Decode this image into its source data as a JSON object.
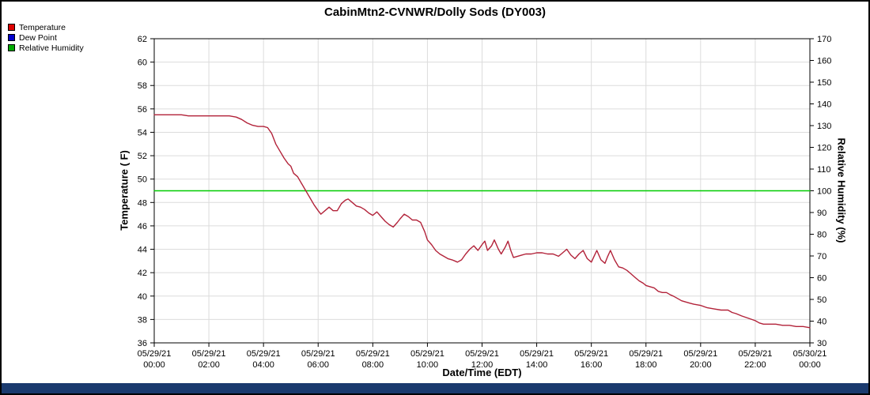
{
  "footer": {
    "color": "#1a3a6e"
  },
  "legend": {
    "items": [
      {
        "label": "Temperature",
        "color": "#dd0000"
      },
      {
        "label": "Dew Point",
        "color": "#0000cc"
      },
      {
        "label": "Relative Humidity",
        "color": "#00aa00"
      }
    ]
  },
  "chart_data": {
    "type": "line",
    "title": "CabinMtn2-CVNWR/Dolly Sods (DY003)",
    "xlabel": "Date/Time (EDT)",
    "ylabel_left": "Temperature ( F)",
    "ylabel_right": "Relative Humidity (%)",
    "grid": true,
    "legend_position": "top-left",
    "axes": {
      "left": {
        "min": 36,
        "max": 62,
        "step": 2
      },
      "right": {
        "min": 30,
        "max": 170,
        "step": 10
      },
      "x_hours": [
        0,
        24
      ]
    },
    "x_ticks": [
      {
        "h": 0,
        "date": "05/29/21",
        "time": "00:00"
      },
      {
        "h": 2,
        "date": "05/29/21",
        "time": "02:00"
      },
      {
        "h": 4,
        "date": "05/29/21",
        "time": "04:00"
      },
      {
        "h": 6,
        "date": "05/29/21",
        "time": "06:00"
      },
      {
        "h": 8,
        "date": "05/29/21",
        "time": "08:00"
      },
      {
        "h": 10,
        "date": "05/29/21",
        "time": "10:00"
      },
      {
        "h": 12,
        "date": "05/29/21",
        "time": "12:00"
      },
      {
        "h": 14,
        "date": "05/29/21",
        "time": "14:00"
      },
      {
        "h": 16,
        "date": "05/29/21",
        "time": "16:00"
      },
      {
        "h": 18,
        "date": "05/29/21",
        "time": "18:00"
      },
      {
        "h": 20,
        "date": "05/29/21",
        "time": "20:00"
      },
      {
        "h": 22,
        "date": "05/29/21",
        "time": "22:00"
      },
      {
        "h": 24,
        "date": "05/30/21",
        "time": "00:00"
      }
    ],
    "series": [
      {
        "name": "Relative Humidity",
        "axis": "right",
        "color": "#00cc00",
        "points": [
          [
            0,
            100
          ],
          [
            24,
            100
          ]
        ]
      },
      {
        "name": "Temperature",
        "axis": "left",
        "color": "#b22239",
        "points": [
          [
            0,
            55.5
          ],
          [
            0.25,
            55.5
          ],
          [
            0.5,
            55.5
          ],
          [
            0.75,
            55.5
          ],
          [
            1,
            55.5
          ],
          [
            1.25,
            55.4
          ],
          [
            1.5,
            55.4
          ],
          [
            1.75,
            55.4
          ],
          [
            2,
            55.4
          ],
          [
            2.25,
            55.4
          ],
          [
            2.5,
            55.4
          ],
          [
            2.75,
            55.4
          ],
          [
            3,
            55.3
          ],
          [
            3.2,
            55.1
          ],
          [
            3.4,
            54.8
          ],
          [
            3.6,
            54.6
          ],
          [
            3.8,
            54.5
          ],
          [
            4,
            54.5
          ],
          [
            4.15,
            54.4
          ],
          [
            4.3,
            53.9
          ],
          [
            4.45,
            53
          ],
          [
            4.6,
            52.4
          ],
          [
            4.75,
            51.8
          ],
          [
            4.9,
            51.3
          ],
          [
            5,
            51.1
          ],
          [
            5.1,
            50.5
          ],
          [
            5.25,
            50.2
          ],
          [
            5.4,
            49.6
          ],
          [
            5.55,
            49
          ],
          [
            5.7,
            48.4
          ],
          [
            5.85,
            47.8
          ],
          [
            6,
            47.3
          ],
          [
            6.1,
            47
          ],
          [
            6.25,
            47.3
          ],
          [
            6.4,
            47.6
          ],
          [
            6.55,
            47.3
          ],
          [
            6.7,
            47.3
          ],
          [
            6.85,
            47.9
          ],
          [
            7,
            48.2
          ],
          [
            7.1,
            48.3
          ],
          [
            7.25,
            48
          ],
          [
            7.4,
            47.7
          ],
          [
            7.55,
            47.6
          ],
          [
            7.7,
            47.4
          ],
          [
            7.85,
            47.1
          ],
          [
            8,
            46.9
          ],
          [
            8.15,
            47.2
          ],
          [
            8.3,
            46.8
          ],
          [
            8.45,
            46.4
          ],
          [
            8.6,
            46.1
          ],
          [
            8.75,
            45.9
          ],
          [
            8.9,
            46.3
          ],
          [
            9,
            46.6
          ],
          [
            9.15,
            47
          ],
          [
            9.3,
            46.8
          ],
          [
            9.45,
            46.5
          ],
          [
            9.6,
            46.5
          ],
          [
            9.75,
            46.3
          ],
          [
            9.9,
            45.5
          ],
          [
            10,
            44.8
          ],
          [
            10.15,
            44.4
          ],
          [
            10.3,
            43.9
          ],
          [
            10.45,
            43.6
          ],
          [
            10.6,
            43.4
          ],
          [
            10.75,
            43.2
          ],
          [
            10.9,
            43.1
          ],
          [
            11,
            43
          ],
          [
            11.1,
            42.9
          ],
          [
            11.25,
            43.1
          ],
          [
            11.4,
            43.6
          ],
          [
            11.55,
            44
          ],
          [
            11.7,
            44.3
          ],
          [
            11.85,
            43.9
          ],
          [
            12,
            44.4
          ],
          [
            12.1,
            44.7
          ],
          [
            12.2,
            43.9
          ],
          [
            12.35,
            44.3
          ],
          [
            12.45,
            44.8
          ],
          [
            12.6,
            44
          ],
          [
            12.7,
            43.6
          ],
          [
            12.85,
            44.2
          ],
          [
            12.95,
            44.7
          ],
          [
            13.05,
            43.9
          ],
          [
            13.15,
            43.3
          ],
          [
            13.3,
            43.4
          ],
          [
            13.45,
            43.5
          ],
          [
            13.6,
            43.6
          ],
          [
            13.8,
            43.6
          ],
          [
            14,
            43.7
          ],
          [
            14.2,
            43.7
          ],
          [
            14.4,
            43.6
          ],
          [
            14.6,
            43.6
          ],
          [
            14.8,
            43.4
          ],
          [
            14.95,
            43.7
          ],
          [
            15.1,
            44
          ],
          [
            15.25,
            43.5
          ],
          [
            15.4,
            43.2
          ],
          [
            15.55,
            43.6
          ],
          [
            15.7,
            43.9
          ],
          [
            15.85,
            43.2
          ],
          [
            16,
            42.9
          ],
          [
            16.1,
            43.4
          ],
          [
            16.2,
            43.9
          ],
          [
            16.35,
            43.1
          ],
          [
            16.5,
            42.8
          ],
          [
            16.6,
            43.4
          ],
          [
            16.7,
            43.9
          ],
          [
            16.85,
            43.1
          ],
          [
            17,
            42.5
          ],
          [
            17.15,
            42.4
          ],
          [
            17.3,
            42.2
          ],
          [
            17.45,
            41.9
          ],
          [
            17.6,
            41.6
          ],
          [
            17.75,
            41.3
          ],
          [
            17.9,
            41.1
          ],
          [
            18,
            40.9
          ],
          [
            18.15,
            40.8
          ],
          [
            18.3,
            40.7
          ],
          [
            18.45,
            40.4
          ],
          [
            18.6,
            40.3
          ],
          [
            18.75,
            40.3
          ],
          [
            18.9,
            40.1
          ],
          [
            19,
            40
          ],
          [
            19.15,
            39.8
          ],
          [
            19.3,
            39.6
          ],
          [
            19.45,
            39.5
          ],
          [
            19.6,
            39.4
          ],
          [
            19.75,
            39.3
          ],
          [
            20,
            39.2
          ],
          [
            20.25,
            39
          ],
          [
            20.5,
            38.9
          ],
          [
            20.75,
            38.8
          ],
          [
            21,
            38.8
          ],
          [
            21.15,
            38.6
          ],
          [
            21.3,
            38.5
          ],
          [
            21.5,
            38.3
          ],
          [
            21.75,
            38.1
          ],
          [
            22,
            37.9
          ],
          [
            22.15,
            37.7
          ],
          [
            22.3,
            37.6
          ],
          [
            22.5,
            37.6
          ],
          [
            22.75,
            37.6
          ],
          [
            23,
            37.5
          ],
          [
            23.25,
            37.5
          ],
          [
            23.5,
            37.4
          ],
          [
            23.75,
            37.4
          ],
          [
            24,
            37.3
          ]
        ]
      }
    ]
  }
}
